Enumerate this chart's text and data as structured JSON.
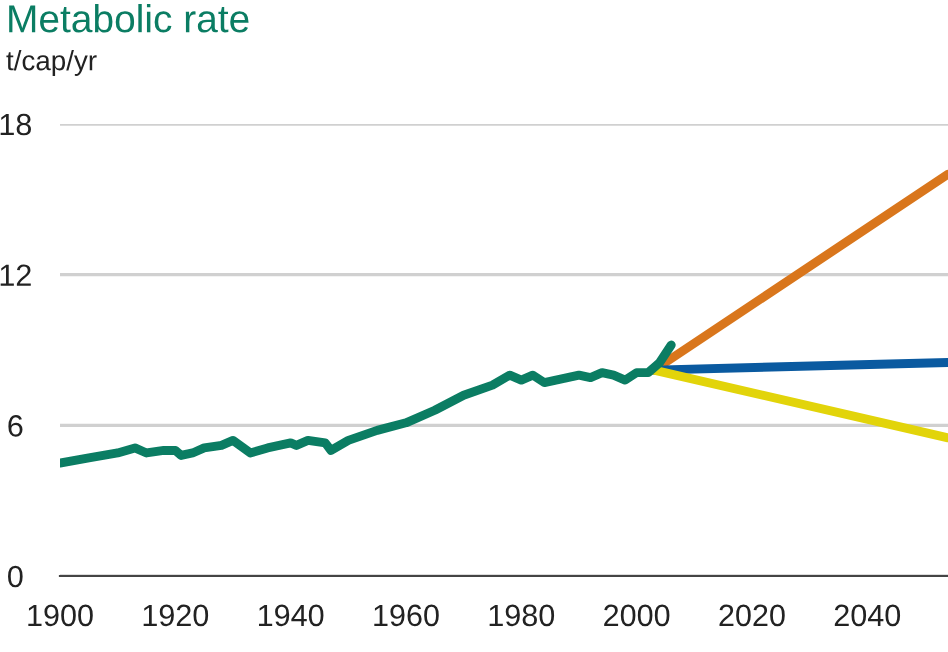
{
  "chart_data": {
    "type": "line",
    "title": "Metabolic rate",
    "subtitle": "t/cap/yr",
    "xlim": [
      1900,
      2054
    ],
    "xticks": [
      1900,
      1920,
      1940,
      1960,
      1980,
      2000,
      2020,
      2040
    ],
    "ylim": [
      0,
      18
    ],
    "yticks": [
      0,
      6,
      12,
      18
    ],
    "grid": "y",
    "legend": false,
    "marker": "none",
    "line_style": "solid",
    "series": [
      {
        "color": "#0b7d63",
        "x": [
          1900,
          1905,
          1910,
          1913,
          1915,
          1918,
          1920,
          1921,
          1923,
          1925,
          1928,
          1930,
          1933,
          1936,
          1940,
          1941,
          1943,
          1946,
          1947,
          1950,
          1955,
          1960,
          1965,
          1970,
          1975,
          1978,
          1980,
          1982,
          1984,
          1986,
          1990,
          1992,
          1994,
          1996,
          1998,
          2000,
          2002,
          2004,
          2006
        ],
        "values": [
          4.5,
          4.7,
          4.9,
          5.1,
          4.9,
          5.0,
          5.0,
          4.8,
          4.9,
          5.1,
          5.2,
          5.4,
          4.9,
          5.1,
          5.3,
          5.2,
          5.4,
          5.3,
          5.0,
          5.4,
          5.8,
          6.1,
          6.6,
          7.2,
          7.6,
          8.0,
          7.8,
          8.0,
          7.7,
          7.8,
          8.0,
          7.9,
          8.1,
          8.0,
          7.8,
          8.1,
          8.1,
          8.5,
          9.2
        ]
      },
      {
        "color": "#d9761c",
        "x": [
          2003,
          2054
        ],
        "values": [
          8.2,
          16.0
        ]
      },
      {
        "color": "#0a5aa0",
        "x": [
          2003,
          2054
        ],
        "values": [
          8.2,
          8.5
        ]
      },
      {
        "color": "#e2d40a",
        "x": [
          2003,
          2054
        ],
        "values": [
          8.2,
          5.5
        ]
      }
    ]
  }
}
